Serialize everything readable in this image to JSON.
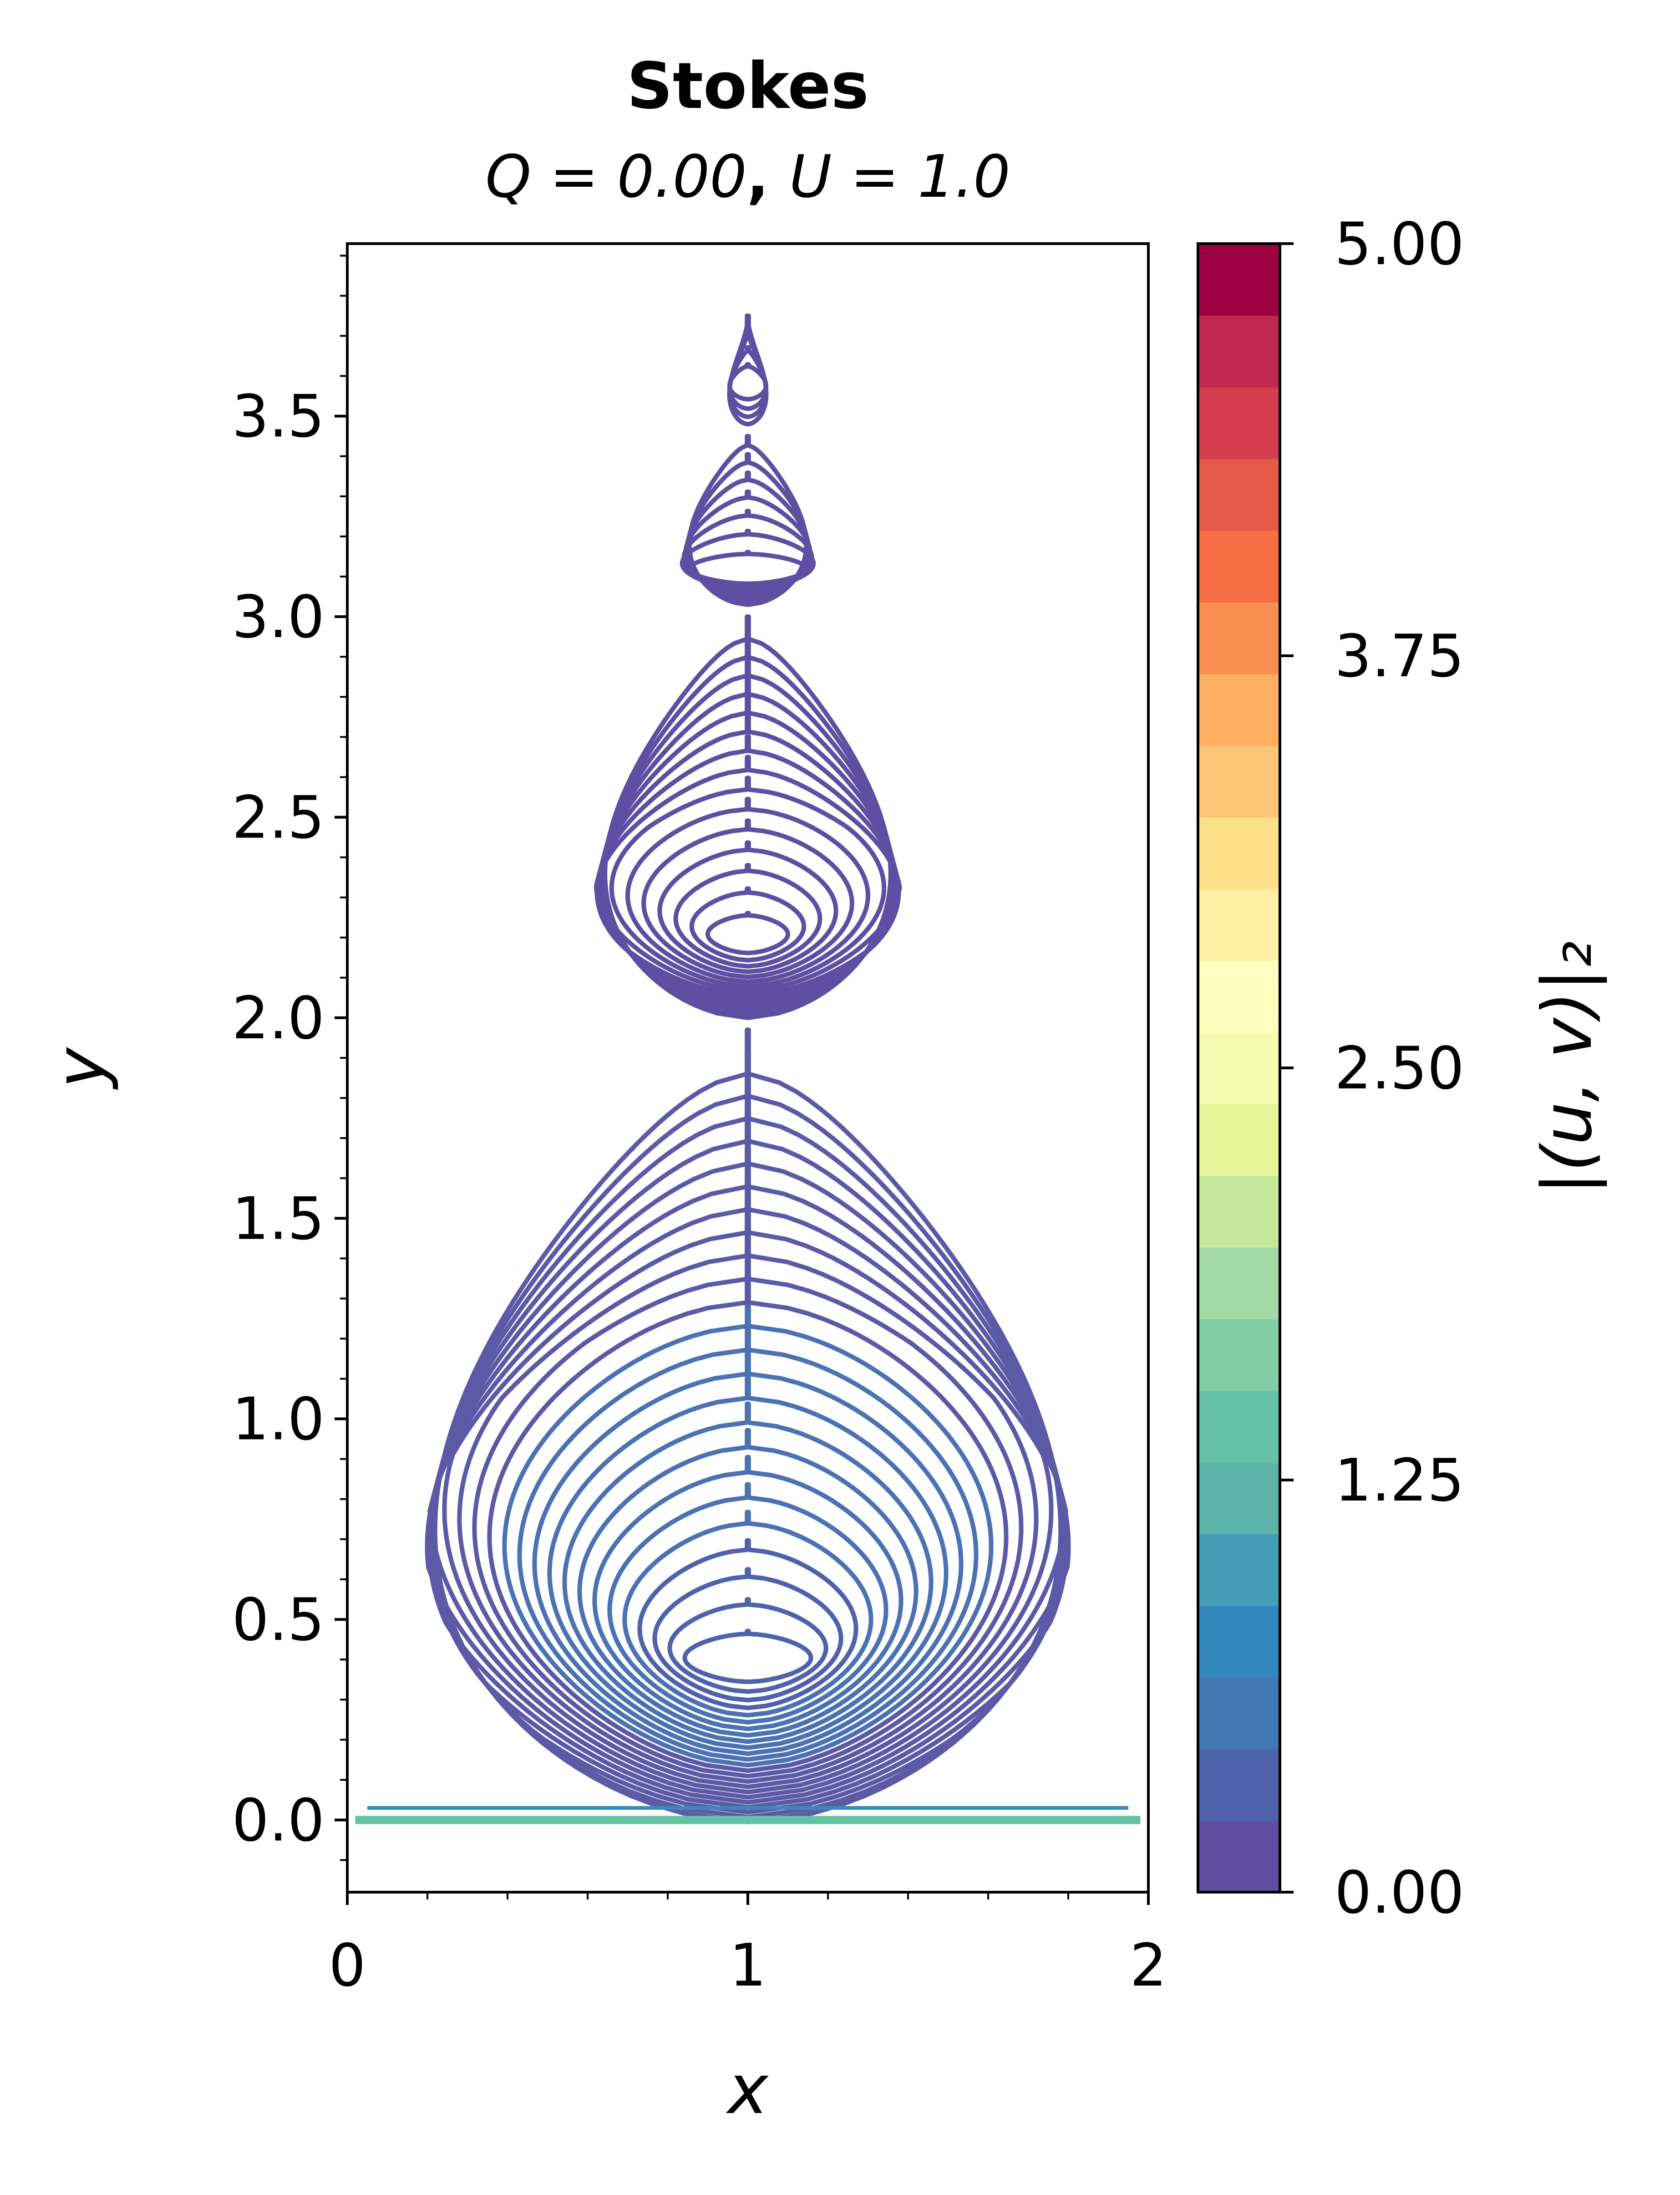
{
  "chart_data": {
    "type": "contour",
    "title": "Stokes",
    "subtitle": {
      "q_part": "Q = 0.00",
      "separator": ", ",
      "u_part": "U = 1.0"
    },
    "xlabel": "x",
    "ylabel": "y",
    "xlim": [
      0,
      2
    ],
    "ylim": [
      -0.18,
      3.93
    ],
    "x_ticks": [
      "0",
      "1",
      "2"
    ],
    "y_ticks": [
      "0.0",
      "0.5",
      "1.0",
      "1.5",
      "2.0",
      "2.5",
      "3.0",
      "3.5"
    ],
    "colorbar": {
      "label": "|(u, v)|₂",
      "range": [
        0,
        5
      ],
      "ticks": [
        "0.00",
        "1.25",
        "2.50",
        "3.75",
        "5.00"
      ],
      "colormap": "Spectral_r"
    },
    "domain": {
      "shape": "triangular wedge",
      "base": [
        0,
        2
      ],
      "apex": [
        1,
        3.75
      ]
    },
    "eddies": [
      {
        "center": [
          1.0,
          0.38
        ],
        "outer_top": 1.97,
        "levels": 24,
        "stroke": "#4b72b2"
      },
      {
        "center": [
          1.0,
          2.19
        ],
        "outer_top": 3.0,
        "levels": 15,
        "stroke": "#5e4fa2"
      },
      {
        "center": [
          1.0,
          3.1
        ],
        "outer_top": 3.45,
        "levels": 7,
        "stroke": "#5e4fa2"
      },
      {
        "center": [
          1.0,
          3.58
        ],
        "outer_top": 3.75,
        "levels": 4,
        "stroke": "#5e4fa2"
      }
    ]
  }
}
